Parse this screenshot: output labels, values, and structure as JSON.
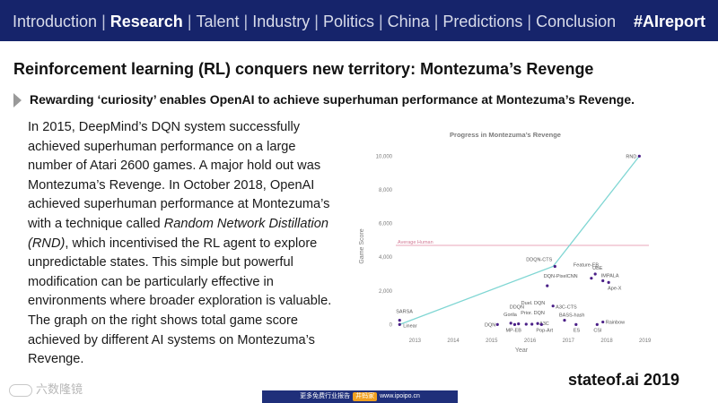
{
  "nav": {
    "items": [
      "Introduction",
      "Research",
      "Talent",
      "Industry",
      "Politics",
      "China",
      "Predictions",
      "Conclusion"
    ],
    "active": "Research",
    "hashtag": "#AIreport"
  },
  "title": "Reinforcement learning (RL) conquers new territory: Montezuma’s Revenge",
  "subtitle": "Rewarding ‘curiosity’ enables OpenAI to achieve superhuman performance at Montezuma’s Revenge.",
  "body": {
    "p1": "In 2015, DeepMind’s DQN system successfully achieved superhuman performance on a large number of Atari 2600 games. A major hold out was Montezuma’s Revenge. In October 2018, OpenAI achieved superhuman performance at Montezuma’s with a technique called ",
    "p1_em": "Random Network Distillation (RND)",
    "p2": ", which incentivised the RL agent to explore unpredictable states. This simple but powerful modification can be particularly effective in environments where broader exploration is valuable. The graph on the right shows total game score achieved by different AI systems on Montezuma’s Revenge."
  },
  "brand": "stateof.ai 2019",
  "watermark": "六数隆镜",
  "footer": {
    "left": "更多免费行业报告",
    "pill": "井蚂家",
    "right": "www.ipoipo.cn"
  },
  "chart_data": {
    "type": "scatter",
    "title": "Progress in Montezuma’s Revenge",
    "xlabel": "Year",
    "ylabel": "Game Score",
    "xlim": [
      2012.5,
      2019.1
    ],
    "ylim": [
      -300,
      10500
    ],
    "xticks": [
      "2013",
      "2014",
      "2015",
      "2016",
      "2017",
      "2018",
      "2019"
    ],
    "yticks": [
      "0",
      "2,000",
      "4,000",
      "6,000",
      "8,000",
      "10,000"
    ],
    "reference_line": {
      "label": "Average Human",
      "value": 4700,
      "color": "#e8a6b9"
    },
    "sota_line": [
      {
        "x": 2012.6,
        "y": 0
      },
      {
        "x": 2016.6,
        "y": 3450
      },
      {
        "x": 2018.85,
        "y": 10000
      }
    ],
    "points": [
      {
        "label": "SARSA",
        "x": 2012.6,
        "y": 250
      },
      {
        "label": "Linear",
        "x": 2012.6,
        "y": 0
      },
      {
        "label": "DQN",
        "x": 2015.15,
        "y": 0
      },
      {
        "label": "Gorila",
        "x": 2015.5,
        "y": 80
      },
      {
        "label": "MP-EB",
        "x": 2015.6,
        "y": 0
      },
      {
        "label": "DDQN",
        "x": 2015.7,
        "y": 40
      },
      {
        "label": "Prior. DQN",
        "x": 2015.9,
        "y": 20
      },
      {
        "label": "Duel. DQN",
        "x": 2016.05,
        "y": 20
      },
      {
        "label": "A3C",
        "x": 2016.2,
        "y": 60
      },
      {
        "label": "Pop-Art",
        "x": 2016.3,
        "y": 0
      },
      {
        "label": "DQN-PixelCNN",
        "x": 2016.45,
        "y": 2300
      },
      {
        "label": "A3C-CTS",
        "x": 2016.6,
        "y": 1100
      },
      {
        "label": "BASS-hash",
        "x": 2016.9,
        "y": 250
      },
      {
        "label": "ES",
        "x": 2017.2,
        "y": 0
      },
      {
        "label": "DDQN-CTS",
        "x": 2016.65,
        "y": 3450
      },
      {
        "label": "Feature-EB",
        "x": 2017.6,
        "y": 2750
      },
      {
        "label": "UBE",
        "x": 2017.7,
        "y": 3000
      },
      {
        "label": "IMPALA",
        "x": 2017.9,
        "y": 2600
      },
      {
        "label": "Ape-X",
        "x": 2018.05,
        "y": 2500
      },
      {
        "label": "CSI",
        "x": 2017.75,
        "y": 0
      },
      {
        "label": "Rainbow",
        "x": 2017.9,
        "y": 150
      },
      {
        "label": "RND",
        "x": 2018.85,
        "y": 10000
      }
    ],
    "colors": {
      "line": "#7fd6d3",
      "point": "#4a1f87",
      "reference": "#e8a6b9",
      "text": "#7a7a7a"
    },
    "grid": false
  }
}
